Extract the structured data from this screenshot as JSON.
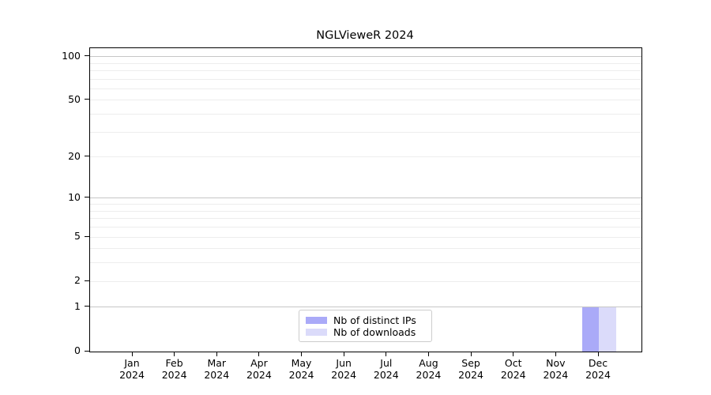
{
  "chart_data": {
    "type": "bar",
    "title": "NGLVieweR 2024",
    "categories": [
      "Jan 2024",
      "Feb 2024",
      "Mar 2024",
      "Apr 2024",
      "May 2024",
      "Jun 2024",
      "Jul 2024",
      "Aug 2024",
      "Sep 2024",
      "Oct 2024",
      "Nov 2024",
      "Dec 2024"
    ],
    "series": [
      {
        "name": "Nb of distinct IPs",
        "color": "#aaaaf8",
        "values": [
          0,
          0,
          0,
          0,
          0,
          0,
          0,
          0,
          0,
          0,
          0,
          1
        ]
      },
      {
        "name": "Nb of downloads",
        "color": "#dbdbfa",
        "values": [
          0,
          0,
          0,
          0,
          0,
          0,
          0,
          0,
          0,
          0,
          0,
          1
        ]
      }
    ],
    "xlabel": "",
    "ylabel": "",
    "yscale": "log1p",
    "ylim": [
      0,
      114
    ],
    "yticks": [
      0,
      1,
      2,
      5,
      10,
      20,
      50,
      100
    ],
    "grid": {
      "major": [
        1,
        10,
        100
      ],
      "minor": [
        2,
        3,
        4,
        5,
        6,
        7,
        8,
        9,
        20,
        30,
        40,
        50,
        60,
        70,
        80,
        90
      ]
    },
    "legend": {
      "position": "lower center",
      "border_color": "#cccccc"
    },
    "colors": {
      "axis": "#000000",
      "grid_major": "#c6c6c6",
      "grid_minor": "#ededed",
      "background": "#ffffff"
    }
  }
}
